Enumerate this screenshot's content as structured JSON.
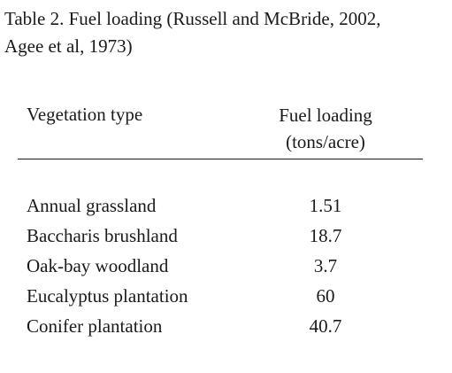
{
  "caption": {
    "line1": "Table 2. Fuel loading (Russell and McBride, 2002,",
    "line2": "Agee et al, 1973)"
  },
  "table": {
    "headers": {
      "vegetation": "Vegetation type",
      "fuel_line1": "Fuel loading",
      "fuel_line2": "(tons/acre)"
    },
    "rows": [
      {
        "vegetation": "Annual grassland",
        "fuel": "1.51"
      },
      {
        "vegetation": "Baccharis brushland",
        "fuel": "18.7"
      },
      {
        "vegetation": "Oak-bay woodland",
        "fuel": "3.7"
      },
      {
        "vegetation": "Eucalyptus plantation",
        "fuel": "60"
      },
      {
        "vegetation": "Conifer plantation",
        "fuel": "40.7"
      }
    ]
  }
}
